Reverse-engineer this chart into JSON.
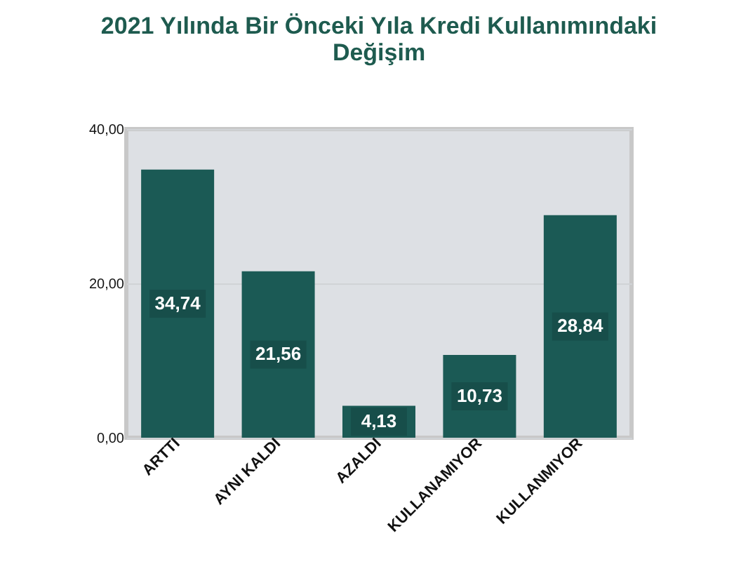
{
  "chart_data": {
    "type": "bar",
    "title": [
      "2021 Yılında Bir Önceki Yıla Kredi Kullanımındaki",
      "Değişim"
    ],
    "categories": [
      "ARTTI",
      "AYNI KALDI",
      "AZALDI",
      "KULLANAMIYOR",
      "KULLANMIYOR"
    ],
    "values": [
      34.74,
      21.56,
      4.13,
      10.73,
      28.84
    ],
    "value_labels": [
      "34,74",
      "21,56",
      "4,13",
      "10,73",
      "28,84"
    ],
    "color": "#1b5a55",
    "ylim": [
      0,
      40
    ],
    "yticks": [
      {
        "value": 0,
        "label": "0,00"
      },
      {
        "value": 20,
        "label": "20,00"
      },
      {
        "value": 40,
        "label": "40,00"
      }
    ],
    "grid": "y"
  }
}
